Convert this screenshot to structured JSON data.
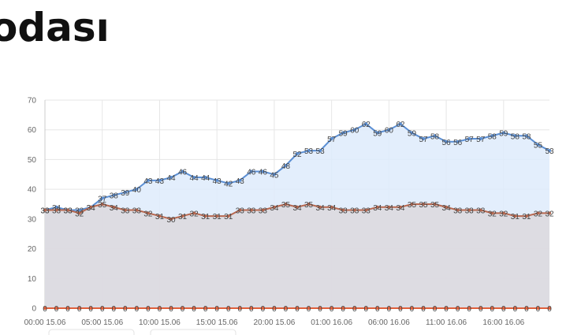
{
  "chart_data": {
    "type": "line",
    "title": "odası",
    "categories": [
      "00:00 15.06",
      null,
      null,
      null,
      null,
      "05:00 15.06",
      null,
      null,
      null,
      null,
      "10:00 15.06",
      null,
      null,
      null,
      null,
      "15:00 15.06",
      null,
      null,
      null,
      null,
      "20:00 15.06",
      null,
      null,
      null,
      null,
      "01:00 16.06",
      null,
      null,
      null,
      null,
      "06:00 16.06",
      null,
      null,
      null,
      null,
      "11:00 16.06",
      null,
      null,
      null,
      null,
      "16:00 16.06",
      null,
      null,
      null,
      null
    ],
    "series": [
      {
        "color": "#5b8fd4",
        "fill": "#deebfb",
        "values": [
          33,
          34,
          33,
          33,
          34,
          37,
          38,
          39,
          40,
          43,
          43,
          44,
          46,
          44,
          44,
          43,
          42,
          43,
          46,
          46,
          45,
          48,
          52,
          53,
          53,
          57,
          59,
          60,
          62,
          59,
          60,
          62,
          59,
          57,
          58,
          56,
          56,
          57,
          57,
          58,
          59,
          58,
          58,
          55,
          53
        ]
      },
      {
        "color": "#b8684f",
        "fill": "#dcd8dd",
        "values": [
          33,
          33,
          33,
          32,
          34,
          35,
          34,
          33,
          33,
          32,
          31,
          30,
          31,
          32,
          31,
          31,
          31,
          33,
          33,
          33,
          34,
          35,
          34,
          35,
          34,
          34,
          33,
          33,
          33,
          34,
          34,
          34,
          35,
          35,
          35,
          34,
          33,
          33,
          33,
          32,
          32,
          31,
          31,
          32,
          32
        ]
      },
      {
        "color": "#e0603c",
        "fill": "none",
        "values": [
          0,
          0,
          0,
          0,
          0,
          0,
          0,
          0,
          0,
          0,
          0,
          0,
          0,
          0,
          0,
          0,
          0,
          0,
          0,
          0,
          0,
          0,
          0,
          0,
          0,
          0,
          0,
          0,
          0,
          0,
          0,
          0,
          0,
          0,
          0,
          0,
          0,
          0,
          0,
          0,
          0,
          0,
          0,
          0,
          0
        ]
      }
    ],
    "ylim": [
      0,
      70
    ],
    "yticks": [
      0,
      10,
      20,
      30,
      40,
      50,
      60,
      70
    ],
    "grid": true
  }
}
